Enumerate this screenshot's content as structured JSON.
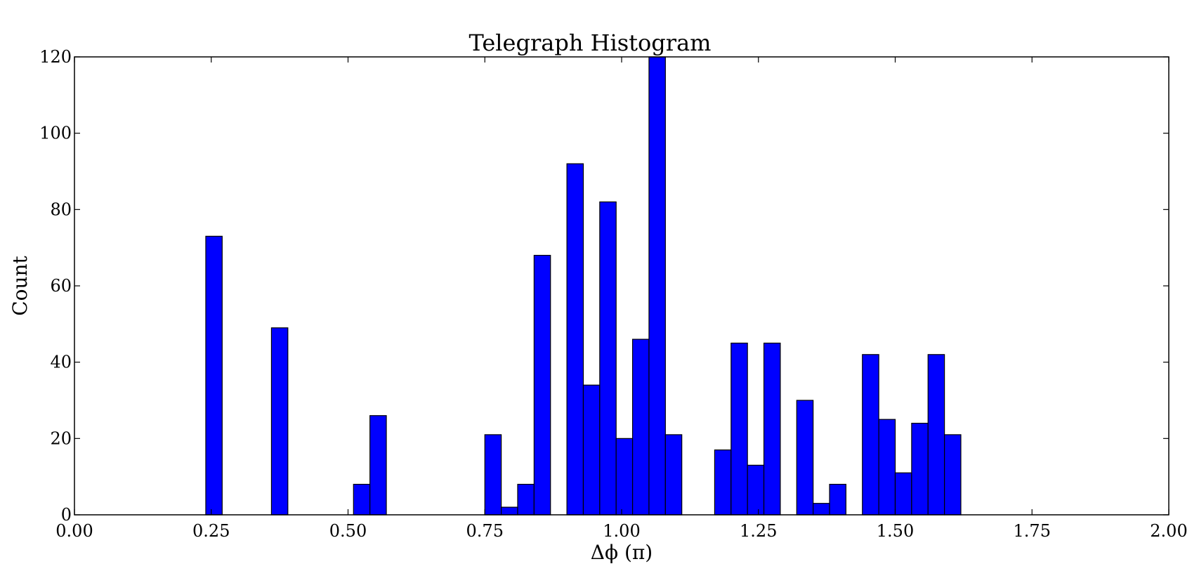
{
  "chart_data": {
    "type": "bar",
    "title": "Telegraph Histogram",
    "xlabel": "Δϕ (π)",
    "ylabel": "Count",
    "xlim": [
      0,
      2
    ],
    "ylim": [
      0,
      120
    ],
    "xticks": [
      "0.00",
      "0.25",
      "0.50",
      "0.75",
      "1.00",
      "1.25",
      "1.50",
      "1.75",
      "2.00"
    ],
    "xtick_values": [
      0,
      0.25,
      0.5,
      0.75,
      1.0,
      1.25,
      1.5,
      1.75,
      2.0
    ],
    "yticks": [
      "0",
      "20",
      "40",
      "60",
      "80",
      "100",
      "120"
    ],
    "ytick_values": [
      0,
      20,
      40,
      60,
      80,
      100,
      120
    ],
    "bin_width": 0.03,
    "bar_color": "#0000ff",
    "grid": false,
    "bins": [
      {
        "x": 0.24,
        "count": 73
      },
      {
        "x": 0.36,
        "count": 49
      },
      {
        "x": 0.51,
        "count": 8
      },
      {
        "x": 0.54,
        "count": 26
      },
      {
        "x": 0.75,
        "count": 21
      },
      {
        "x": 0.78,
        "count": 2
      },
      {
        "x": 0.81,
        "count": 8
      },
      {
        "x": 0.84,
        "count": 68
      },
      {
        "x": 0.9,
        "count": 92
      },
      {
        "x": 0.93,
        "count": 34
      },
      {
        "x": 0.96,
        "count": 82
      },
      {
        "x": 0.99,
        "count": 20
      },
      {
        "x": 1.02,
        "count": 46
      },
      {
        "x": 1.05,
        "count": 120
      },
      {
        "x": 1.08,
        "count": 21
      },
      {
        "x": 1.17,
        "count": 17
      },
      {
        "x": 1.2,
        "count": 45
      },
      {
        "x": 1.23,
        "count": 13
      },
      {
        "x": 1.26,
        "count": 45
      },
      {
        "x": 1.32,
        "count": 30
      },
      {
        "x": 1.35,
        "count": 3
      },
      {
        "x": 1.38,
        "count": 8
      },
      {
        "x": 1.44,
        "count": 42
      },
      {
        "x": 1.47,
        "count": 25
      },
      {
        "x": 1.5,
        "count": 11
      },
      {
        "x": 1.53,
        "count": 24
      },
      {
        "x": 1.56,
        "count": 42
      },
      {
        "x": 1.59,
        "count": 21
      }
    ]
  }
}
